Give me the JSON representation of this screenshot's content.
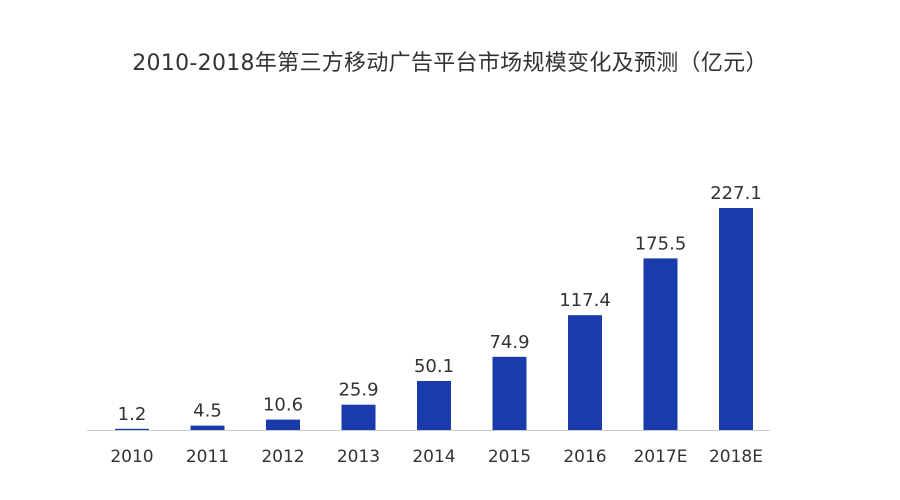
{
  "chart_data": {
    "type": "bar",
    "title": "2010-2018年第三方移动广告平台市场规模变化及预测（亿元）",
    "categories": [
      "2010",
      "2011",
      "2012",
      "2013",
      "2014",
      "2015",
      "2016",
      "2017E",
      "2018E"
    ],
    "values": [
      1.2,
      4.5,
      10.6,
      25.9,
      50.1,
      74.9,
      117.4,
      175.5,
      227.1
    ],
    "value_labels": [
      "1.2",
      "4.5",
      "10.6",
      "25.9",
      "50.1",
      "74.9",
      "117.4",
      "175.5",
      "227.1"
    ],
    "xlabel": "",
    "ylabel": "",
    "ylim": [
      0,
      227.1
    ],
    "grid": false,
    "legend": "none",
    "bar_color": "#1a3bab",
    "axis_color": "#cccccc"
  }
}
